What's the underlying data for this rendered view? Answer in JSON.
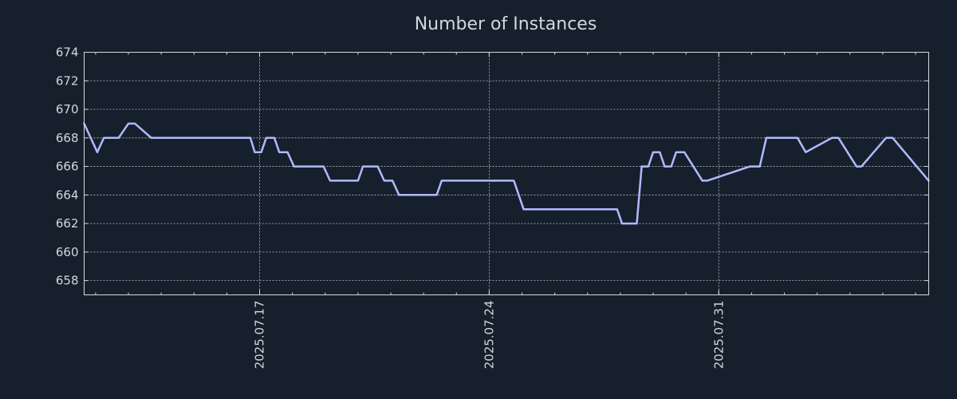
{
  "chart_data": {
    "type": "line",
    "title": "Number of Instances",
    "xlabel": "",
    "ylabel": "",
    "x_start": "2025.07.11",
    "x_end": "2025.08.06",
    "xlim_days": [
      -5.35,
      20.4
    ],
    "x_ticks": [
      {
        "label": "2025.07.17",
        "day": 0
      },
      {
        "label": "2025.07.24",
        "day": 7
      },
      {
        "label": "2025.07.31",
        "day": 14
      }
    ],
    "ylim": [
      657,
      674
    ],
    "y_ticks": [
      658,
      660,
      662,
      664,
      666,
      668,
      670,
      672,
      674
    ],
    "grid": true,
    "line_color": "#b4b8ff",
    "series": [
      {
        "name": "instances",
        "x_days": [
          -5.35,
          -4.95,
          -4.75,
          -4.3,
          -4.0,
          -3.8,
          -3.3,
          -3.1,
          -0.28,
          -0.15,
          0.05,
          0.2,
          0.45,
          0.6,
          0.85,
          1.05,
          1.95,
          2.15,
          3.0,
          3.15,
          3.6,
          3.8,
          4.05,
          4.25,
          5.4,
          5.55,
          7.75,
          8.05,
          10.9,
          11.05,
          11.5,
          11.65,
          11.85,
          12.0,
          12.2,
          12.35,
          12.55,
          12.7,
          12.95,
          13.5,
          13.65,
          14.95,
          15.25,
          15.45,
          16.4,
          16.65,
          17.45,
          17.65,
          18.2,
          18.35,
          19.1,
          19.3,
          20.4
        ],
        "values": [
          669,
          667,
          668,
          668,
          669,
          669,
          668,
          668,
          668,
          667,
          667,
          668,
          668,
          667,
          667,
          666,
          666,
          665,
          665,
          666,
          666,
          665,
          665,
          664,
          664,
          665,
          665,
          663,
          663,
          662,
          662,
          666,
          666,
          667,
          667,
          666,
          666,
          667,
          667,
          665,
          665,
          666,
          666,
          668,
          668,
          667,
          668,
          668,
          666,
          666,
          668,
          668,
          665
        ]
      }
    ]
  }
}
